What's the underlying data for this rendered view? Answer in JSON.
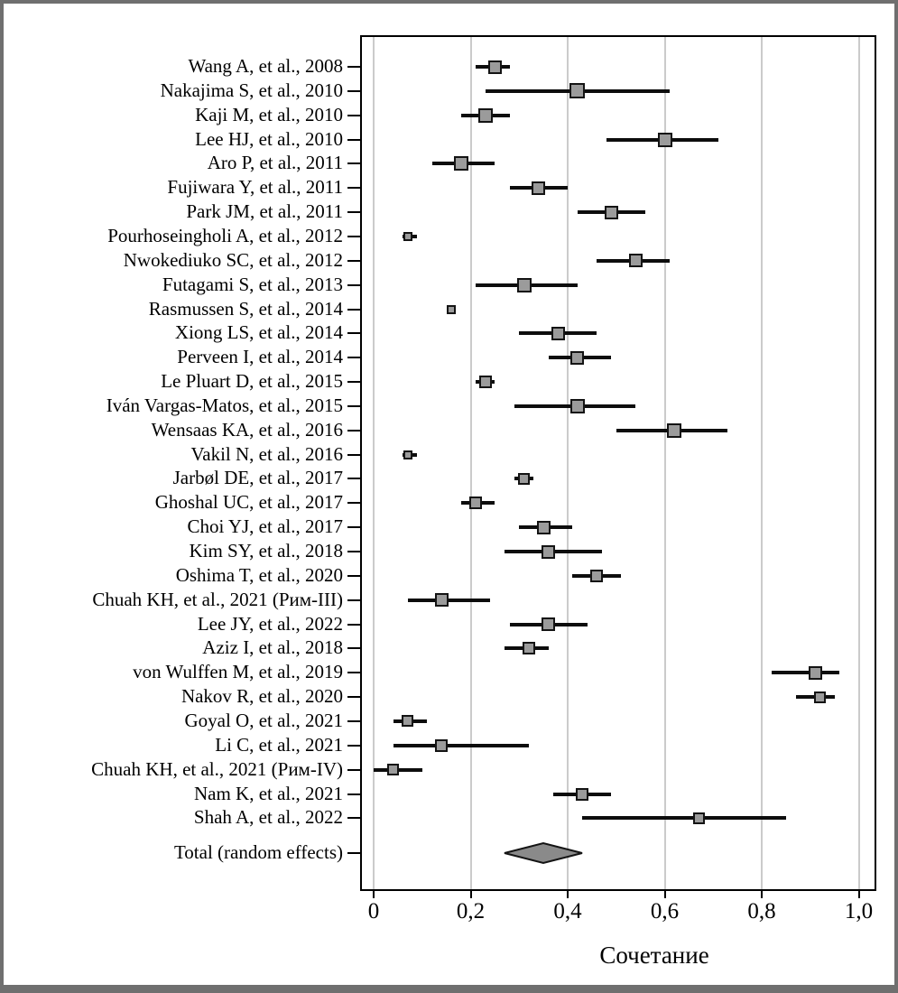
{
  "figure": {
    "frame_color": "#6f6f6f",
    "background": "#ffffff"
  },
  "chart_data": {
    "type": "forest",
    "title": "",
    "xlabel": "Сочетание",
    "ylabel": "",
    "xlim": [
      0,
      1.04
    ],
    "grid": true,
    "x_ticks": [
      {
        "value": 0.0,
        "label": "0"
      },
      {
        "value": 0.2,
        "label": "0,2"
      },
      {
        "value": 0.4,
        "label": "0,4"
      },
      {
        "value": 0.6,
        "label": "0,6"
      },
      {
        "value": 0.8,
        "label": "0,8"
      },
      {
        "value": 1.0,
        "label": "1,0"
      }
    ],
    "colors": {
      "marker_fill": "#9b9b9b",
      "marker_border": "#141414",
      "ci_line": "#0d0d0d",
      "gridline": "#cbcbcb",
      "diamond_fill": "#8a8a8a",
      "diamond_border": "#141414"
    },
    "studies": [
      {
        "label": "Wang A, et al., 2008",
        "estimate": 0.25,
        "ci_low": 0.21,
        "ci_high": 0.28,
        "size": 15
      },
      {
        "label": "Nakajima S, et al., 2010",
        "estimate": 0.42,
        "ci_low": 0.23,
        "ci_high": 0.61,
        "size": 17
      },
      {
        "label": "Kaji M, et al., 2010",
        "estimate": 0.23,
        "ci_low": 0.18,
        "ci_high": 0.28,
        "size": 16
      },
      {
        "label": "Lee HJ, et al., 2010",
        "estimate": 0.6,
        "ci_low": 0.48,
        "ci_high": 0.71,
        "size": 16
      },
      {
        "label": "Aro P, et al., 2011",
        "estimate": 0.18,
        "ci_low": 0.12,
        "ci_high": 0.25,
        "size": 16
      },
      {
        "label": "Fujiwara Y, et al., 2011",
        "estimate": 0.34,
        "ci_low": 0.28,
        "ci_high": 0.4,
        "size": 15
      },
      {
        "label": "Park JM, et al., 2011",
        "estimate": 0.49,
        "ci_low": 0.42,
        "ci_high": 0.56,
        "size": 15
      },
      {
        "label": "Pourhoseingholi A, et al., 2012",
        "estimate": 0.07,
        "ci_low": 0.06,
        "ci_high": 0.09,
        "size": 10
      },
      {
        "label": "Nwokediuko SC, et al., 2012",
        "estimate": 0.54,
        "ci_low": 0.46,
        "ci_high": 0.61,
        "size": 15
      },
      {
        "label": "Futagami S, et al., 2013",
        "estimate": 0.31,
        "ci_low": 0.21,
        "ci_high": 0.42,
        "size": 16
      },
      {
        "label": "Rasmussen S, et al., 2014",
        "estimate": 0.16,
        "ci_low": 0.15,
        "ci_high": 0.17,
        "size": 10
      },
      {
        "label": "Xiong LS, et al., 2014",
        "estimate": 0.38,
        "ci_low": 0.3,
        "ci_high": 0.46,
        "size": 15
      },
      {
        "label": "Perveen I, et al., 2014",
        "estimate": 0.42,
        "ci_low": 0.36,
        "ci_high": 0.49,
        "size": 15
      },
      {
        "label": "Le Pluart D, et al., 2015",
        "estimate": 0.23,
        "ci_low": 0.21,
        "ci_high": 0.25,
        "size": 14
      },
      {
        "label": "Iván Vargas-Matos, et al., 2015",
        "estimate": 0.42,
        "ci_low": 0.29,
        "ci_high": 0.54,
        "size": 16
      },
      {
        "label": "Wensaas KA, et al., 2016",
        "estimate": 0.62,
        "ci_low": 0.5,
        "ci_high": 0.73,
        "size": 16
      },
      {
        "label": "Vakil N, et al., 2016",
        "estimate": 0.07,
        "ci_low": 0.06,
        "ci_high": 0.09,
        "size": 10
      },
      {
        "label": "Jarbøl DE, et al., 2017",
        "estimate": 0.31,
        "ci_low": 0.29,
        "ci_high": 0.33,
        "size": 13
      },
      {
        "label": "Ghoshal UC, et al., 2017",
        "estimate": 0.21,
        "ci_low": 0.18,
        "ci_high": 0.25,
        "size": 14
      },
      {
        "label": "Choi YJ, et al., 2017",
        "estimate": 0.35,
        "ci_low": 0.3,
        "ci_high": 0.41,
        "size": 15
      },
      {
        "label": "Kim SY, et al., 2018",
        "estimate": 0.36,
        "ci_low": 0.27,
        "ci_high": 0.47,
        "size": 15
      },
      {
        "label": "Oshima T, et al., 2020",
        "estimate": 0.46,
        "ci_low": 0.41,
        "ci_high": 0.51,
        "size": 14
      },
      {
        "label": "Chuah KH, et al., 2021 (Рим-III)",
        "estimate": 0.14,
        "ci_low": 0.07,
        "ci_high": 0.24,
        "size": 15
      },
      {
        "label": "Lee JY, et al., 2022",
        "estimate": 0.36,
        "ci_low": 0.28,
        "ci_high": 0.44,
        "size": 15
      },
      {
        "label": "Aziz I, et al., 2018",
        "estimate": 0.32,
        "ci_low": 0.27,
        "ci_high": 0.36,
        "size": 14
      },
      {
        "label": "von Wulffen M, et al., 2019",
        "estimate": 0.91,
        "ci_low": 0.82,
        "ci_high": 0.96,
        "size": 15
      },
      {
        "label": "Nakov R, et al., 2020",
        "estimate": 0.92,
        "ci_low": 0.87,
        "ci_high": 0.95,
        "size": 13
      },
      {
        "label": "Goyal O, et al., 2021",
        "estimate": 0.07,
        "ci_low": 0.04,
        "ci_high": 0.11,
        "size": 13
      },
      {
        "label": "Li C, et al., 2021",
        "estimate": 0.14,
        "ci_low": 0.04,
        "ci_high": 0.32,
        "size": 14
      },
      {
        "label": "Chuah KH, et al., 2021 (Рим-IV)",
        "estimate": 0.04,
        "ci_low": 0.0,
        "ci_high": 0.1,
        "size": 13
      },
      {
        "label": "Nam K, et al., 2021",
        "estimate": 0.43,
        "ci_low": 0.37,
        "ci_high": 0.49,
        "size": 14
      },
      {
        "label": "Shah A, et al., 2022",
        "estimate": 0.67,
        "ci_low": 0.43,
        "ci_high": 0.85,
        "size": 13
      }
    ],
    "total": {
      "label": "Total (random effects)",
      "estimate": 0.35,
      "ci_low": 0.27,
      "ci_high": 0.43
    }
  }
}
